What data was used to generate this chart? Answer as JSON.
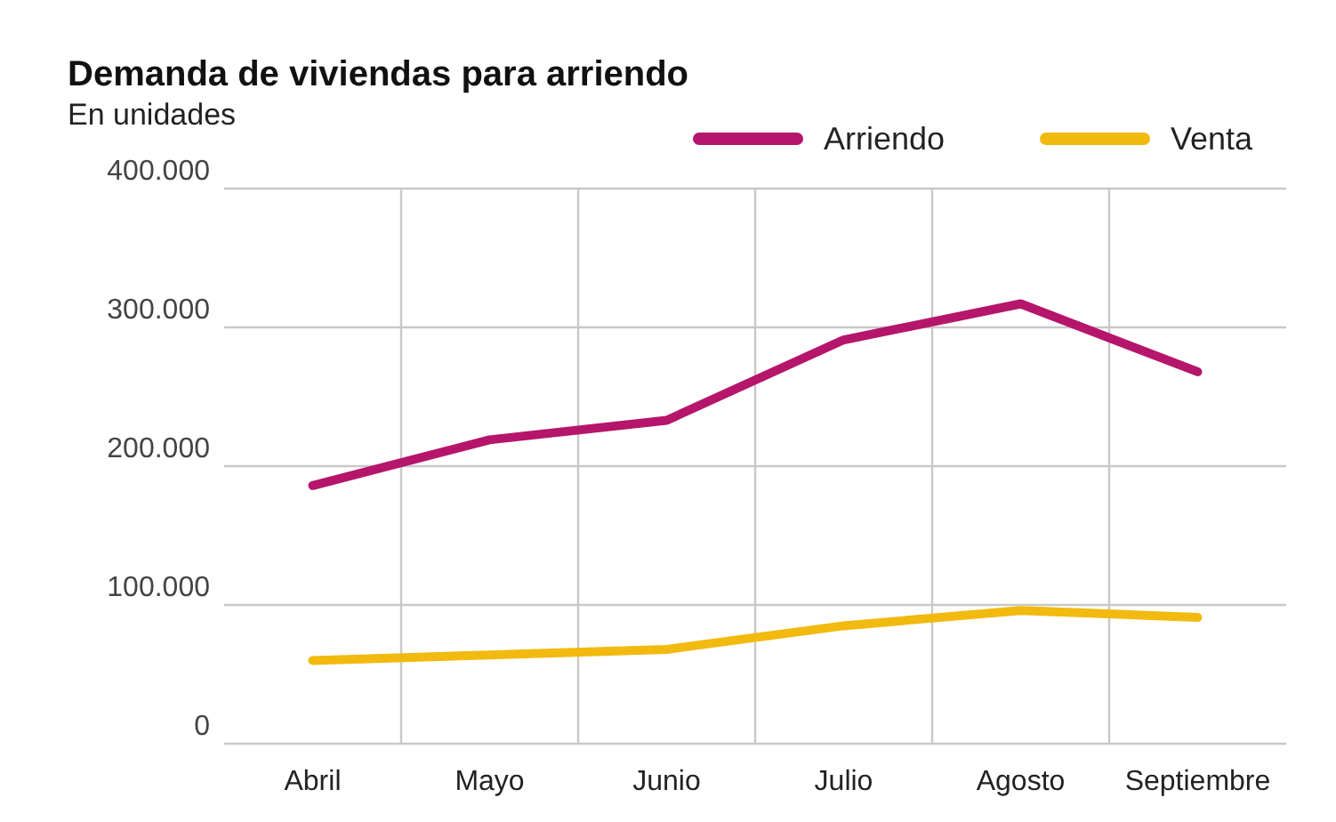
{
  "chart_data": {
    "type": "line",
    "title": "Demanda de viviendas para arriendo",
    "subtitle": "En unidades",
    "categories": [
      "Abril",
      "Mayo",
      "Junio",
      "Julio",
      "Agosto",
      "Septiembre"
    ],
    "series": [
      {
        "name": "Arriendo",
        "color": "#b5166b",
        "values": [
          186000,
          219000,
          233000,
          291000,
          317000,
          268000
        ]
      },
      {
        "name": "Venta",
        "color": "#f2b90f",
        "values": [
          60000,
          64000,
          68000,
          85000,
          96000,
          91000
        ]
      }
    ],
    "ylim": [
      0,
      400000
    ],
    "yticks": [
      {
        "value": 0,
        "label": "0"
      },
      {
        "value": 100000,
        "label": "100.000"
      },
      {
        "value": 200000,
        "label": "200.000"
      },
      {
        "value": 300000,
        "label": "300.000"
      },
      {
        "value": 400000,
        "label": "400.000"
      }
    ],
    "grid": true,
    "legend": "top right",
    "marker": "none",
    "line_style": "solid"
  }
}
